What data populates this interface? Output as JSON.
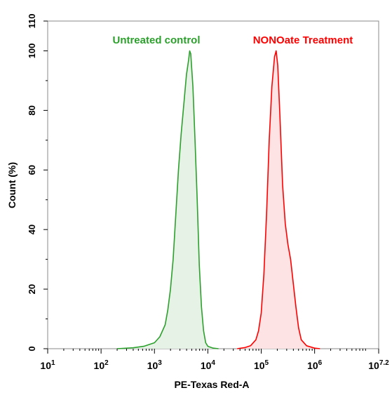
{
  "chart_data": {
    "type": "area",
    "xlabel": "PE-Texas Red-A",
    "ylabel": "Count (%)",
    "x_scale": "log",
    "xlim": [
      1,
      7.2
    ],
    "ylim": [
      0,
      110
    ],
    "x_ticks": [
      {
        "base": "10",
        "exp": "1",
        "value": 1
      },
      {
        "base": "10",
        "exp": "2",
        "value": 2
      },
      {
        "base": "10",
        "exp": "3",
        "value": 3
      },
      {
        "base": "10",
        "exp": "4",
        "value": 4
      },
      {
        "base": "10",
        "exp": "5",
        "value": 5
      },
      {
        "base": "10",
        "exp": "6",
        "value": 6
      },
      {
        "base": "10",
        "exp": "7.2",
        "value": 7.2
      }
    ],
    "y_ticks": [
      {
        "label": "0",
        "value": 0
      },
      {
        "label": "20",
        "value": 20
      },
      {
        "label": "40",
        "value": 40
      },
      {
        "label": "60",
        "value": 60
      },
      {
        "label": "80",
        "value": 80
      },
      {
        "label": "100",
        "value": 100
      },
      {
        "label": "110",
        "value": 110
      }
    ],
    "grid": false,
    "series": [
      {
        "name": "Untreated control",
        "color": "#2ca02c",
        "fill": "#e6f2e6",
        "points": [
          [
            2.3,
            0
          ],
          [
            2.6,
            0.3
          ],
          [
            2.8,
            0.8
          ],
          [
            3.0,
            2
          ],
          [
            3.1,
            4
          ],
          [
            3.2,
            8
          ],
          [
            3.25,
            13
          ],
          [
            3.3,
            20
          ],
          [
            3.35,
            30
          ],
          [
            3.4,
            45
          ],
          [
            3.45,
            60
          ],
          [
            3.5,
            72
          ],
          [
            3.55,
            82
          ],
          [
            3.6,
            92
          ],
          [
            3.64,
            97
          ],
          [
            3.66,
            100
          ],
          [
            3.68,
            99
          ],
          [
            3.72,
            88
          ],
          [
            3.76,
            70
          ],
          [
            3.8,
            50
          ],
          [
            3.84,
            28
          ],
          [
            3.88,
            14
          ],
          [
            3.92,
            6
          ],
          [
            3.96,
            2
          ],
          [
            4.0,
            0.8
          ],
          [
            4.1,
            0.2
          ],
          [
            4.2,
            0
          ]
        ]
      },
      {
        "name": "NONOate Treatment",
        "color": "#ff0000",
        "fill": "#fde3e3",
        "points": [
          [
            4.55,
            0
          ],
          [
            4.7,
            0.4
          ],
          [
            4.8,
            1
          ],
          [
            4.9,
            3
          ],
          [
            4.95,
            6
          ],
          [
            5.0,
            12
          ],
          [
            5.05,
            25
          ],
          [
            5.1,
            45
          ],
          [
            5.15,
            70
          ],
          [
            5.2,
            88
          ],
          [
            5.25,
            98
          ],
          [
            5.28,
            100
          ],
          [
            5.31,
            95
          ],
          [
            5.35,
            78
          ],
          [
            5.4,
            55
          ],
          [
            5.45,
            42
          ],
          [
            5.5,
            35
          ],
          [
            5.55,
            30
          ],
          [
            5.6,
            22
          ],
          [
            5.65,
            14
          ],
          [
            5.7,
            7
          ],
          [
            5.75,
            3
          ],
          [
            5.85,
            1
          ],
          [
            6.0,
            0.2
          ],
          [
            6.1,
            0
          ]
        ]
      }
    ]
  }
}
